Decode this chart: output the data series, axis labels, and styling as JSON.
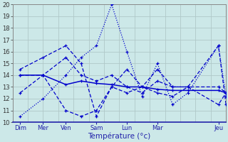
{
  "background_color": "#cce8e8",
  "grid_color": "#b0c8c8",
  "line_color": "#0000cc",
  "x_tick_positions": [
    0.5,
    2.0,
    3.5,
    5.5,
    7.5,
    9.5,
    13.5
  ],
  "x_tick_labels": [
    "Dim",
    "Mer",
    "Ven",
    "Sam",
    "Lun",
    "Mar",
    "Jeu"
  ],
  "x_minor_positions": [
    0,
    1,
    2,
    3,
    4,
    5,
    6,
    7,
    8,
    9,
    10,
    11,
    12,
    13,
    14
  ],
  "xlim": [
    0,
    14
  ],
  "ylim": [
    10,
    20
  ],
  "yticks": [
    10,
    11,
    12,
    13,
    14,
    15,
    16,
    17,
    18,
    19,
    20
  ],
  "xlabel": "Température (°c)",
  "series": [
    {
      "x": [
        0.5,
        2.0,
        3.5,
        4.5,
        5.5,
        6.5,
        7.5,
        8.5,
        9.5,
        10.5,
        11.5,
        13.5,
        14.0
      ],
      "y": [
        10.5,
        12.0,
        14.0,
        15.5,
        16.5,
        20.0,
        16.0,
        12.2,
        15.0,
        11.5,
        12.5,
        16.5,
        12.2
      ],
      "linestyle": "dotted"
    },
    {
      "x": [
        0.5,
        2.0,
        3.5,
        4.5,
        5.5,
        6.5,
        7.5,
        8.5,
        9.5,
        10.5,
        11.5,
        13.5,
        14.0
      ],
      "y": [
        12.5,
        14.0,
        15.5,
        14.0,
        13.5,
        14.0,
        13.0,
        12.5,
        13.5,
        13.0,
        13.0,
        13.0,
        12.5
      ],
      "linestyle": "dashed"
    },
    {
      "x": [
        0.5,
        2.0,
        3.5,
        4.5,
        5.5,
        6.5,
        7.5,
        8.5,
        9.5,
        10.5,
        11.5,
        13.5,
        14.0
      ],
      "y": [
        14.0,
        14.0,
        11.0,
        10.5,
        11.0,
        13.0,
        12.5,
        13.0,
        12.5,
        12.2,
        13.0,
        11.5,
        12.5
      ],
      "linestyle": "dashed"
    },
    {
      "x": [
        0.5,
        2.0,
        3.5,
        4.5,
        5.5,
        6.5,
        7.5,
        8.5,
        9.5,
        10.5,
        11.5,
        13.5,
        14.0
      ],
      "y": [
        14.5,
        15.5,
        16.5,
        15.0,
        10.5,
        13.0,
        14.5,
        13.0,
        14.5,
        13.0,
        13.0,
        16.5,
        11.5
      ],
      "linestyle": "dashed"
    },
    {
      "x": [
        0.5,
        2.0,
        3.5,
        4.5,
        5.5,
        6.5,
        7.5,
        8.5,
        9.5,
        10.5,
        11.5,
        13.5,
        14.0
      ],
      "y": [
        14.0,
        14.0,
        13.2,
        13.5,
        13.3,
        13.2,
        13.0,
        13.0,
        12.8,
        12.7,
        12.7,
        12.7,
        12.5
      ],
      "linestyle": "solid"
    }
  ]
}
